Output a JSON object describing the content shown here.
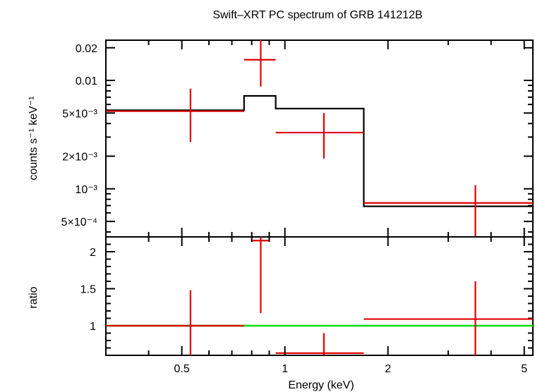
{
  "chart_data": {
    "type": "spectrum",
    "title": "Swift–XRT PC spectrum of GRB 141212B",
    "xlabel": "Energy (keV)",
    "xscale": "log",
    "xlim": [
      0.3,
      5.3
    ],
    "xticks": [
      {
        "value": 0.5,
        "label": "0.5"
      },
      {
        "value": 1,
        "label": "1"
      },
      {
        "value": 2,
        "label": "2"
      },
      {
        "value": 5,
        "label": "5"
      }
    ],
    "colors": {
      "data": "#e00000",
      "model": "#000000",
      "unity": "#00e000",
      "axes": "#000000"
    },
    "top_panel": {
      "ylabel": "counts s⁻¹ keV⁻¹",
      "yscale": "log",
      "ylim": [
        0.00036,
        0.0235
      ],
      "yticks": [
        {
          "value": 0.02,
          "label": "0.02"
        },
        {
          "value": 0.01,
          "label": "0.01"
        },
        {
          "value": 0.005,
          "label": "5×10⁻³"
        },
        {
          "value": 0.002,
          "label": "2×10⁻³"
        },
        {
          "value": 0.001,
          "label": "10⁻³"
        },
        {
          "value": 0.0005,
          "label": "5×10⁻⁴"
        }
      ],
      "data": [
        {
          "x": 0.53,
          "xlo": 0.3,
          "xhi": 0.76,
          "y": 0.0052,
          "ylo": 0.0027,
          "yhi": 0.0084
        },
        {
          "x": 0.85,
          "xlo": 0.76,
          "xhi": 0.94,
          "y": 0.0155,
          "ylo": 0.0088,
          "yhi": 0.0235
        },
        {
          "x": 1.3,
          "xlo": 0.94,
          "xhi": 1.7,
          "y": 0.0033,
          "ylo": 0.0019,
          "yhi": 0.005
        },
        {
          "x": 3.6,
          "xlo": 1.7,
          "xhi": 5.3,
          "y": 0.00074,
          "ylo": 0.00036,
          "yhi": 0.00108
        }
      ],
      "model": [
        {
          "xlo": 0.3,
          "xhi": 0.76,
          "y": 0.0053
        },
        {
          "xlo": 0.76,
          "xhi": 0.94,
          "y": 0.0072
        },
        {
          "xlo": 0.94,
          "xhi": 1.7,
          "y": 0.0055
        },
        {
          "xlo": 1.7,
          "xhi": 5.3,
          "y": 0.00069
        }
      ]
    },
    "bottom_panel": {
      "ylabel": "ratio",
      "yscale": "linear",
      "ylim": [
        0.6,
        2.2
      ],
      "yticks": [
        {
          "value": 1,
          "label": "1"
        },
        {
          "value": 1.5,
          "label": "1.5"
        },
        {
          "value": 2,
          "label": "2"
        }
      ],
      "unity": 1,
      "data": [
        {
          "x": 0.53,
          "xlo": 0.3,
          "xhi": 0.76,
          "y": 1.0,
          "ylo": 0.6,
          "yhi": 1.48
        },
        {
          "x": 0.85,
          "xlo": 0.8,
          "xhi": 0.9,
          "y": 2.15,
          "ylo": 1.17,
          "yhi": 2.2
        },
        {
          "x": 1.3,
          "xlo": 0.94,
          "xhi": 1.7,
          "y": 0.63,
          "ylo": 0.6,
          "yhi": 0.9
        },
        {
          "x": 3.6,
          "xlo": 1.7,
          "xhi": 5.3,
          "y": 1.09,
          "ylo": 0.6,
          "yhi": 1.6
        }
      ]
    }
  }
}
